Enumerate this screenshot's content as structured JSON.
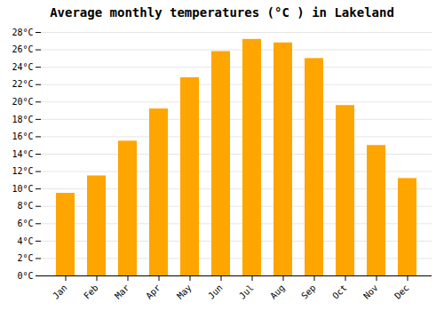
{
  "chart_data": {
    "type": "bar",
    "title": "Average monthly temperatures (°C ) in Lakeland",
    "categories": [
      "Jan",
      "Feb",
      "Mar",
      "Apr",
      "May",
      "Jun",
      "Jul",
      "Aug",
      "Sep",
      "Oct",
      "Nov",
      "Dec"
    ],
    "values": [
      9.5,
      11.5,
      15.5,
      19.2,
      22.8,
      25.8,
      27.2,
      26.8,
      25.0,
      19.6,
      15.0,
      11.2
    ],
    "color": "#FFA500",
    "ylim": [
      0,
      28
    ],
    "yticks": [
      {
        "value": 0,
        "label": "0°C"
      },
      {
        "value": 2,
        "label": "2°C"
      },
      {
        "value": 4,
        "label": "4°C"
      },
      {
        "value": 6,
        "label": "6°C"
      },
      {
        "value": 8,
        "label": "8°C"
      },
      {
        "value": 10,
        "label": "10°C"
      },
      {
        "value": 12,
        "label": "12°C"
      },
      {
        "value": 14,
        "label": "14°C"
      },
      {
        "value": 16,
        "label": "16°C"
      },
      {
        "value": 18,
        "label": "18°C"
      },
      {
        "value": 20,
        "label": "20°C"
      },
      {
        "value": 22,
        "label": "22°C"
      },
      {
        "value": 24,
        "label": "24°C"
      },
      {
        "value": 26,
        "label": "26°C"
      },
      {
        "value": 28,
        "label": "28°C"
      }
    ],
    "grid": true
  }
}
